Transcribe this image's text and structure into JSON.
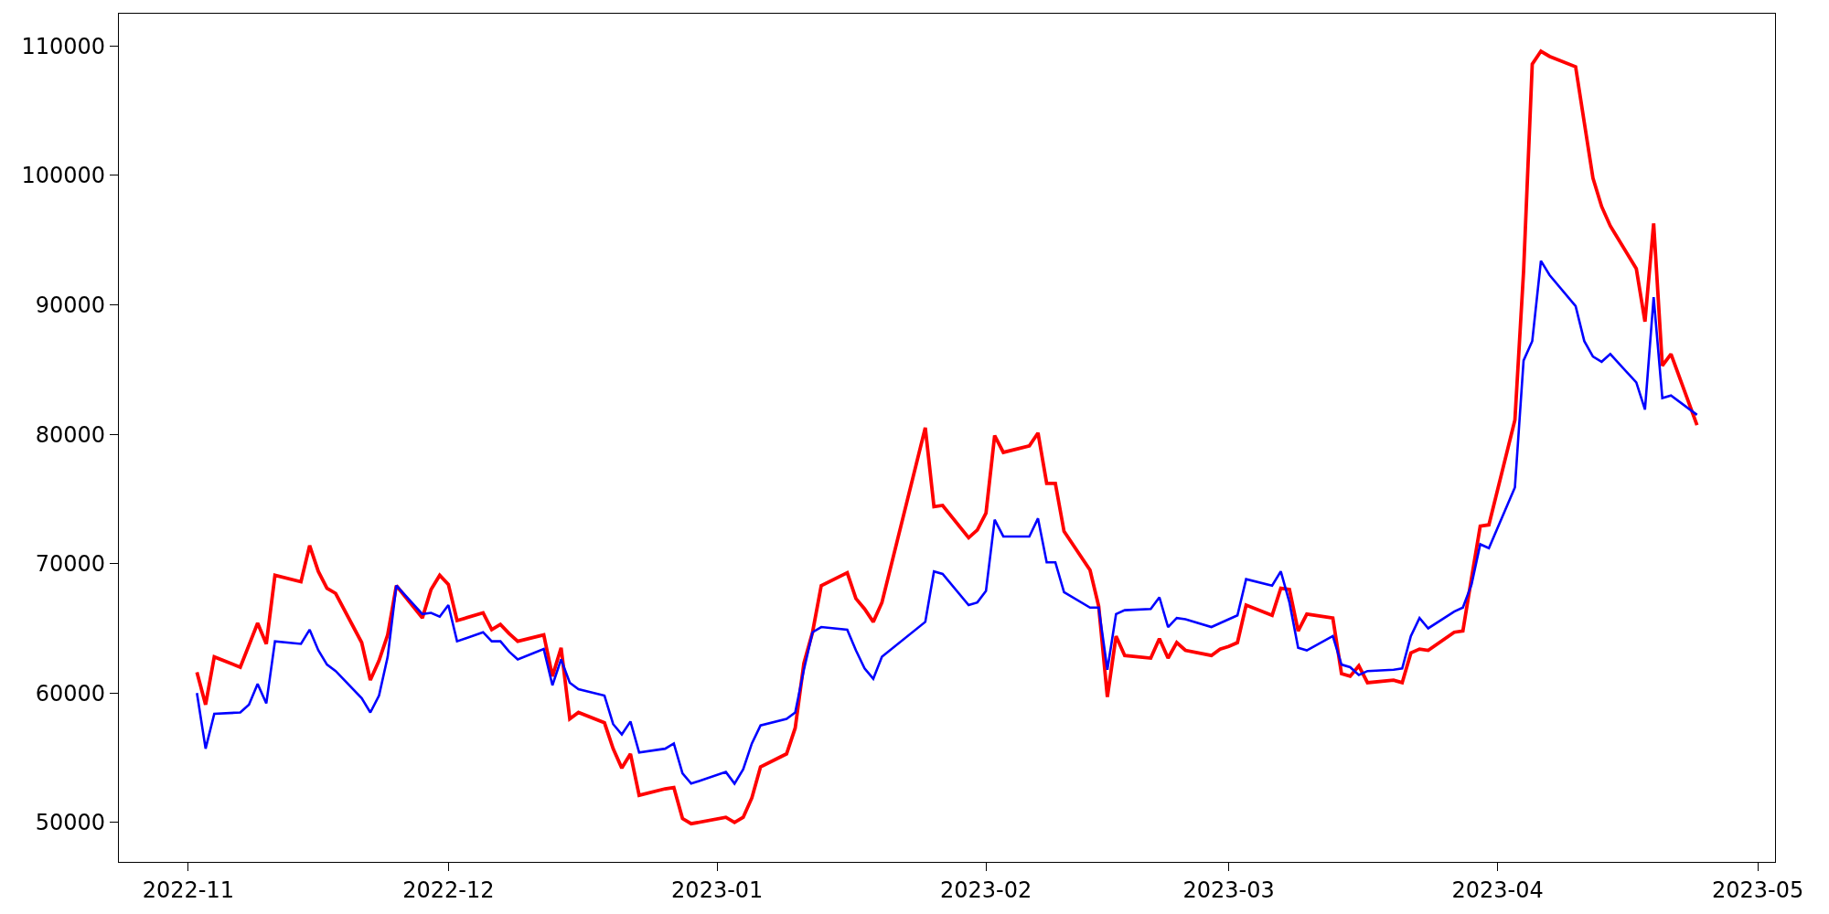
{
  "chart_data": {
    "type": "line",
    "x": [
      "2022-11-02",
      "2022-11-03",
      "2022-11-04",
      "2022-11-07",
      "2022-11-08",
      "2022-11-09",
      "2022-11-10",
      "2022-11-11",
      "2022-11-14",
      "2022-11-15",
      "2022-11-16",
      "2022-11-17",
      "2022-11-18",
      "2022-11-21",
      "2022-11-22",
      "2022-11-23",
      "2022-11-24",
      "2022-11-25",
      "2022-11-28",
      "2022-11-29",
      "2022-11-30",
      "2022-12-01",
      "2022-12-02",
      "2022-12-05",
      "2022-12-06",
      "2022-12-07",
      "2022-12-08",
      "2022-12-09",
      "2022-12-12",
      "2022-12-13",
      "2022-12-14",
      "2022-12-15",
      "2022-12-16",
      "2022-12-19",
      "2022-12-20",
      "2022-12-21",
      "2022-12-22",
      "2022-12-23",
      "2022-12-26",
      "2022-12-27",
      "2022-12-28",
      "2022-12-29",
      "2023-01-02",
      "2023-01-03",
      "2023-01-04",
      "2023-01-05",
      "2023-01-06",
      "2023-01-09",
      "2023-01-10",
      "2023-01-11",
      "2023-01-12",
      "2023-01-13",
      "2023-01-16",
      "2023-01-17",
      "2023-01-18",
      "2023-01-19",
      "2023-01-20",
      "2023-01-25",
      "2023-01-26",
      "2023-01-27",
      "2023-01-30",
      "2023-01-31",
      "2023-02-01",
      "2023-02-02",
      "2023-02-03",
      "2023-02-06",
      "2023-02-07",
      "2023-02-08",
      "2023-02-09",
      "2023-02-10",
      "2023-02-13",
      "2023-02-14",
      "2023-02-15",
      "2023-02-16",
      "2023-02-17",
      "2023-02-20",
      "2023-02-21",
      "2023-02-22",
      "2023-02-23",
      "2023-02-24",
      "2023-02-27",
      "2023-02-28",
      "2023-03-01",
      "2023-03-02",
      "2023-03-03",
      "2023-03-06",
      "2023-03-07",
      "2023-03-08",
      "2023-03-09",
      "2023-03-10",
      "2023-03-13",
      "2023-03-14",
      "2023-03-15",
      "2023-03-16",
      "2023-03-17",
      "2023-03-20",
      "2023-03-21",
      "2023-03-22",
      "2023-03-23",
      "2023-03-24",
      "2023-03-27",
      "2023-03-28",
      "2023-03-29",
      "2023-03-30",
      "2023-03-31",
      "2023-04-03",
      "2023-04-04",
      "2023-04-05",
      "2023-04-06",
      "2023-04-07",
      "2023-04-10",
      "2023-04-11",
      "2023-04-12",
      "2023-04-13",
      "2023-04-14",
      "2023-04-17",
      "2023-04-18",
      "2023-04-19",
      "2023-04-20",
      "2023-04-21",
      "2023-04-24"
    ],
    "series": [
      {
        "color": "#ff0000",
        "values": [
          61600,
          59100,
          62800,
          62000,
          63700,
          65400,
          63800,
          69100,
          68600,
          71400,
          69400,
          68100,
          67700,
          63900,
          61000,
          62500,
          64500,
          68300,
          65800,
          68000,
          69100,
          68400,
          65600,
          66200,
          64900,
          65300,
          64600,
          64000,
          64500,
          61300,
          63500,
          58000,
          58500,
          57700,
          55700,
          54200,
          55300,
          52100,
          52600,
          52700,
          50300,
          49900,
          50400,
          50000,
          50400,
          51900,
          54300,
          55300,
          57300,
          62300,
          64700,
          68300,
          69300,
          67300,
          66500,
          65500,
          67000,
          80500,
          74400,
          74500,
          72000,
          72600,
          73900,
          79900,
          78600,
          79100,
          80100,
          76200,
          76200,
          72500,
          69500,
          66700,
          59700,
          64400,
          62900,
          62700,
          64200,
          62700,
          63900,
          63300,
          62900,
          63400,
          63600,
          63900,
          66800,
          66000,
          68100,
          68000,
          64800,
          66100,
          65800,
          61500,
          61300,
          62100,
          60800,
          61000,
          60800,
          63100,
          63400,
          63300,
          64700,
          64800,
          68900,
          72900,
          73000,
          81100,
          92600,
          108600,
          109600,
          109200,
          108400,
          104100,
          99800,
          97600,
          96100,
          92800,
          88700,
          96300,
          85300,
          86200,
          80700
        ]
      },
      {
        "color": "#0000ff",
        "values": [
          60000,
          55700,
          58400,
          58500,
          59100,
          60700,
          59200,
          64000,
          63800,
          64900,
          63300,
          62200,
          61700,
          59600,
          58500,
          59800,
          62800,
          68300,
          66100,
          66200,
          65900,
          66800,
          64000,
          64700,
          64000,
          64000,
          63200,
          62600,
          63400,
          60600,
          62600,
          60800,
          60300,
          59800,
          57600,
          56800,
          57800,
          55400,
          55700,
          56100,
          53800,
          53000,
          53900,
          53000,
          54100,
          56100,
          57500,
          58000,
          58500,
          61800,
          64700,
          65100,
          64900,
          63300,
          61900,
          61100,
          62800,
          65500,
          69400,
          69200,
          66800,
          67000,
          67900,
          73400,
          72100,
          72100,
          73500,
          70100,
          70100,
          67800,
          66600,
          66600,
          61800,
          66100,
          66400,
          66500,
          67400,
          65100,
          65800,
          65700,
          65100,
          65400,
          65700,
          66000,
          68800,
          68300,
          69400,
          67000,
          63500,
          63300,
          64400,
          62200,
          62000,
          61400,
          61700,
          61800,
          61900,
          64400,
          65800,
          65000,
          66300,
          66600,
          68400,
          71500,
          71200,
          75900,
          85700,
          87200,
          93400,
          92300,
          89900,
          87200,
          86000,
          85600,
          86200,
          84000,
          81900,
          90600,
          82800,
          83000,
          81500
        ]
      }
    ],
    "xlim": [
      "2022-10-24",
      "2023-05-03"
    ],
    "xticks": [
      "2022-11",
      "2022-12",
      "2023-01",
      "2023-02",
      "2023-03",
      "2023-04",
      "2023-05"
    ],
    "ylim": [
      46950,
      112500
    ],
    "yticks": [
      50000,
      60000,
      70000,
      80000,
      90000,
      100000,
      110000
    ]
  }
}
